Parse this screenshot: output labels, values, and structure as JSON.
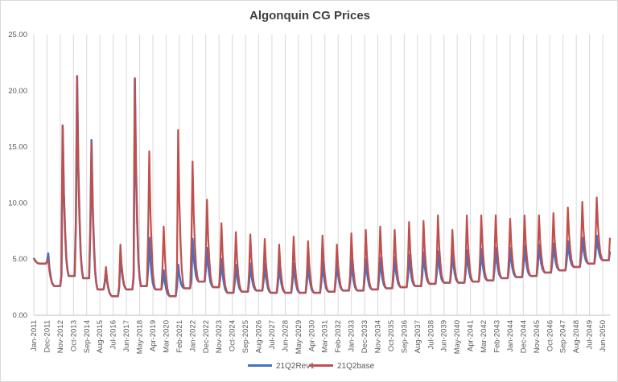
{
  "chart_data": {
    "type": "line",
    "title": "Algonquin CG Prices",
    "xlabel": "",
    "ylabel": "",
    "ylim": [
      0,
      25
    ],
    "y_ticks": [
      "0.00",
      "5.00",
      "10.00",
      "15.00",
      "20.00",
      "25.00"
    ],
    "x_ticks": [
      "Jan-2011",
      "Dec-2011",
      "Nov-2012",
      "Oct-2013",
      "Sep-2014",
      "Aug-2015",
      "Jul-2016",
      "Jun-2017",
      "May-2018",
      "Apr-2019",
      "Mar-2020",
      "Feb-2021",
      "Jan-2022",
      "Dec-2022",
      "Nov-2023",
      "Oct-2024",
      "Sep-2025",
      "Aug-2026",
      "Jul-2027",
      "Jun-2028",
      "May-2029",
      "Apr-2030",
      "Mar-2031",
      "Feb-2032",
      "Jan-2033",
      "Dec-2033",
      "Nov-2034",
      "Oct-2035",
      "Sep-2036",
      "Aug-2037",
      "Jul-2038",
      "Jun-2039",
      "May-2040",
      "Apr-2041",
      "Mar-2042",
      "Feb-2043",
      "Jan-2044",
      "Dec-2044",
      "Nov-2045",
      "Oct-2046",
      "Sep-2047",
      "Aug-2048",
      "Jul-2049",
      "Jun-2050"
    ],
    "x_range": [
      "Jan-2011",
      "Dec-2050"
    ],
    "grid": "vertical",
    "legend_position": "bottom",
    "winter_peaks": [
      {
        "year": 2011,
        "rev1": 5.1,
        "base": 5.1
      },
      {
        "year": 2012,
        "rev1": 5.5,
        "base": 5.0
      },
      {
        "year": 2013,
        "rev1": 16.9,
        "base": 16.9
      },
      {
        "year": 2014,
        "rev1": 21.3,
        "base": 21.3
      },
      {
        "year": 2015,
        "rev1": 15.6,
        "base": 15.4
      },
      {
        "year": 2016,
        "rev1": 4.0,
        "base": 4.3
      },
      {
        "year": 2017,
        "rev1": 5.5,
        "base": 6.3
      },
      {
        "year": 2018,
        "rev1": 21.1,
        "base": 21.1
      },
      {
        "year": 2019,
        "rev1": 6.9,
        "base": 14.6
      },
      {
        "year": 2020,
        "rev1": 4.0,
        "base": 7.9
      },
      {
        "year": 2021,
        "rev1": 4.5,
        "base": 16.5
      },
      {
        "year": 2022,
        "rev1": 6.8,
        "base": 13.7
      },
      {
        "year": 2023,
        "rev1": 6.0,
        "base": 10.3
      },
      {
        "year": 2024,
        "rev1": 5.0,
        "base": 8.2
      },
      {
        "year": 2025,
        "rev1": 4.5,
        "base": 7.4
      },
      {
        "year": 2026,
        "rev1": 4.6,
        "base": 7.2
      },
      {
        "year": 2027,
        "rev1": 4.6,
        "base": 6.8
      },
      {
        "year": 2028,
        "rev1": 4.5,
        "base": 6.3
      },
      {
        "year": 2029,
        "rev1": 4.6,
        "base": 7.0
      },
      {
        "year": 2030,
        "rev1": 4.6,
        "base": 6.6
      },
      {
        "year": 2031,
        "rev1": 4.8,
        "base": 7.1
      },
      {
        "year": 2032,
        "rev1": 4.7,
        "base": 6.3
      },
      {
        "year": 2033,
        "rev1": 4.9,
        "base": 7.3
      },
      {
        "year": 2034,
        "rev1": 5.0,
        "base": 7.6
      },
      {
        "year": 2035,
        "rev1": 5.1,
        "base": 7.9
      },
      {
        "year": 2036,
        "rev1": 5.2,
        "base": 7.6
      },
      {
        "year": 2037,
        "rev1": 5.4,
        "base": 8.3
      },
      {
        "year": 2038,
        "rev1": 5.6,
        "base": 8.4
      },
      {
        "year": 2039,
        "rev1": 5.7,
        "base": 8.9
      },
      {
        "year": 2040,
        "rev1": 5.6,
        "base": 7.6
      },
      {
        "year": 2041,
        "rev1": 5.8,
        "base": 8.9
      },
      {
        "year": 2042,
        "rev1": 5.9,
        "base": 8.9
      },
      {
        "year": 2043,
        "rev1": 6.0,
        "base": 8.9
      },
      {
        "year": 2044,
        "rev1": 6.0,
        "base": 8.6
      },
      {
        "year": 2045,
        "rev1": 6.2,
        "base": 8.9
      },
      {
        "year": 2046,
        "rev1": 6.3,
        "base": 8.9
      },
      {
        "year": 2047,
        "rev1": 6.4,
        "base": 9.1
      },
      {
        "year": 2048,
        "rev1": 6.6,
        "base": 9.6
      },
      {
        "year": 2049,
        "rev1": 6.9,
        "base": 10.1
      },
      {
        "year": 2050,
        "rev1": 7.1,
        "base": 10.5
      }
    ],
    "trough_levels": [
      {
        "year": 2011,
        "value": 4.6
      },
      {
        "year": 2012,
        "value": 2.6
      },
      {
        "year": 2013,
        "value": 3.5
      },
      {
        "year": 2014,
        "value": 3.3
      },
      {
        "year": 2015,
        "value": 2.3
      },
      {
        "year": 2016,
        "value": 1.7
      },
      {
        "year": 2017,
        "value": 2.3
      },
      {
        "year": 2018,
        "value": 2.6
      },
      {
        "year": 2019,
        "value": 2.3
      },
      {
        "year": 2020,
        "value": 1.7
      },
      {
        "year": 2021,
        "value": 2.4
      },
      {
        "year": 2022,
        "value": 3.0
      },
      {
        "year": 2023,
        "value": 2.5
      },
      {
        "year": 2024,
        "value": 2.0
      },
      {
        "year": 2025,
        "value": 2.1
      },
      {
        "year": 2026,
        "value": 2.2
      },
      {
        "year": 2027,
        "value": 2.0
      },
      {
        "year": 2028,
        "value": 2.0
      },
      {
        "year": 2029,
        "value": 2.0
      },
      {
        "year": 2030,
        "value": 2.0
      },
      {
        "year": 2031,
        "value": 2.1
      },
      {
        "year": 2032,
        "value": 2.2
      },
      {
        "year": 2033,
        "value": 2.2
      },
      {
        "year": 2034,
        "value": 2.3
      },
      {
        "year": 2035,
        "value": 2.4
      },
      {
        "year": 2036,
        "value": 2.5
      },
      {
        "year": 2037,
        "value": 2.6
      },
      {
        "year": 2038,
        "value": 2.8
      },
      {
        "year": 2039,
        "value": 2.9
      },
      {
        "year": 2040,
        "value": 2.9
      },
      {
        "year": 2041,
        "value": 3.0
      },
      {
        "year": 2042,
        "value": 3.1
      },
      {
        "year": 2043,
        "value": 3.3
      },
      {
        "year": 2044,
        "value": 3.4
      },
      {
        "year": 2045,
        "value": 3.5
      },
      {
        "year": 2046,
        "value": 3.8
      },
      {
        "year": 2047,
        "value": 4.0
      },
      {
        "year": 2048,
        "value": 4.3
      },
      {
        "year": 2049,
        "value": 4.6
      },
      {
        "year": 2050,
        "value": 4.9
      }
    ],
    "series": [
      {
        "name": "21Q2Rev1",
        "color": "#4472c4",
        "peak_key": "rev1"
      },
      {
        "name": "21Q2base",
        "color": "#c0504d",
        "peak_key": "base"
      }
    ]
  }
}
